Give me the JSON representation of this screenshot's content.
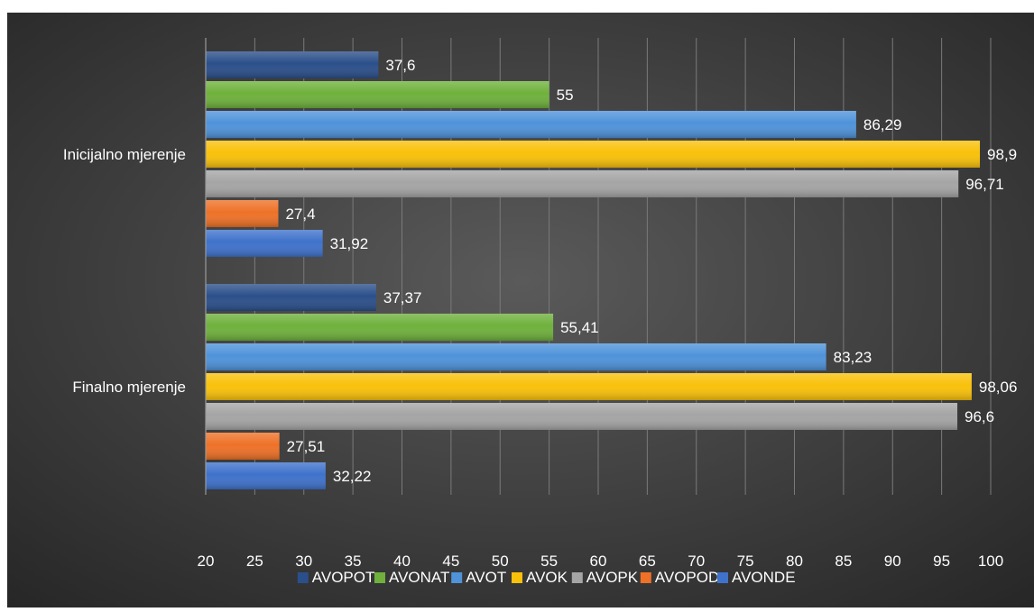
{
  "chart_data": {
    "type": "bar",
    "orientation": "horizontal",
    "categories": [
      "Inicijalno mjerenje",
      "Finalno mjerenje"
    ],
    "series": [
      {
        "name": "AVOPOT",
        "color": "#2b4f8a",
        "values": [
          37.6,
          37.37
        ],
        "labels": [
          "37,6",
          "37,37"
        ]
      },
      {
        "name": "AVONAT",
        "color": "#6fb13c",
        "values": [
          55,
          55.41
        ],
        "labels": [
          "55",
          "55,41"
        ]
      },
      {
        "name": "AVOT",
        "color": "#4f93da",
        "values": [
          86.29,
          83.23
        ],
        "labels": [
          "86,29",
          "83,23"
        ]
      },
      {
        "name": "AVOK",
        "color": "#f9c10a",
        "values": [
          98.9,
          98.06
        ],
        "labels": [
          "98,9",
          "98,06"
        ]
      },
      {
        "name": "AVOPK",
        "color": "#a5a5a5",
        "values": [
          96.71,
          96.6
        ],
        "labels": [
          "96,71",
          "96,6"
        ]
      },
      {
        "name": "AVOPOD",
        "color": "#ee7127",
        "values": [
          27.4,
          27.51
        ],
        "labels": [
          "27,4",
          "27,51"
        ]
      },
      {
        "name": "AVONDE",
        "color": "#3f72cb",
        "values": [
          31.92,
          32.22
        ],
        "labels": [
          "31,92",
          "32,22"
        ]
      }
    ],
    "xlim": [
      20,
      100
    ],
    "x_ticks": [
      20,
      25,
      30,
      35,
      40,
      45,
      50,
      55,
      60,
      65,
      70,
      75,
      80,
      85,
      90,
      95,
      100
    ],
    "x_tick_labels": [
      "20",
      "25",
      "30",
      "35",
      "40",
      "45",
      "50",
      "55",
      "60",
      "65",
      "70",
      "75",
      "80",
      "85",
      "90",
      "95",
      "100"
    ],
    "grid": true,
    "legend_position": "bottom",
    "background": "dark-radial-gradient",
    "text_color": "#ffffff"
  }
}
